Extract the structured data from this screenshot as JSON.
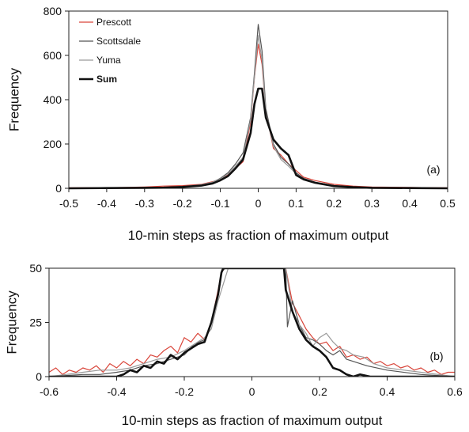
{
  "chart_data": [
    {
      "type": "line",
      "panel_label": "(a)",
      "xlabel": "10-min steps as fraction of maximum output",
      "ylabel": "Frequency",
      "xlim": [
        -0.5,
        0.5
      ],
      "ylim": [
        0,
        800
      ],
      "xticks": [
        "-0.5",
        "-0.4",
        "-0.3",
        "-0.2",
        "-0.1",
        "0",
        "0.1",
        "0.2",
        "0.3",
        "0.4",
        "0.5"
      ],
      "yticks": [
        "0",
        "200",
        "400",
        "600",
        "800"
      ],
      "legend_position": "top-left",
      "series": [
        {
          "name": "Prescott",
          "color": "#d9453a",
          "width": 1.2,
          "x": [
            -0.5,
            -0.45,
            -0.4,
            -0.35,
            -0.3,
            -0.25,
            -0.2,
            -0.15,
            -0.12,
            -0.1,
            -0.08,
            -0.06,
            -0.04,
            -0.02,
            -0.01,
            0,
            0.01,
            0.02,
            0.04,
            0.06,
            0.08,
            0.1,
            0.12,
            0.15,
            0.2,
            0.25,
            0.3,
            0.35,
            0.4,
            0.45,
            0.5
          ],
          "y": [
            2,
            3,
            2,
            4,
            6,
            10,
            12,
            18,
            30,
            40,
            60,
            90,
            120,
            300,
            500,
            650,
            560,
            350,
            180,
            150,
            110,
            80,
            50,
            35,
            18,
            10,
            6,
            5,
            4,
            3,
            2
          ]
        },
        {
          "name": "Scottsdale",
          "color": "#555555",
          "width": 1.2,
          "x": [
            -0.5,
            -0.4,
            -0.3,
            -0.25,
            -0.2,
            -0.15,
            -0.12,
            -0.1,
            -0.08,
            -0.06,
            -0.04,
            -0.02,
            -0.01,
            0,
            0.01,
            0.02,
            0.04,
            0.06,
            0.08,
            0.1,
            0.12,
            0.15,
            0.2,
            0.25,
            0.3,
            0.4,
            0.5
          ],
          "y": [
            0,
            1,
            2,
            4,
            8,
            15,
            28,
            45,
            70,
            110,
            160,
            320,
            520,
            740,
            620,
            360,
            200,
            140,
            110,
            70,
            45,
            28,
            12,
            6,
            3,
            1,
            0
          ]
        },
        {
          "name": "Yuma",
          "color": "#9a9a9a",
          "width": 1.2,
          "x": [
            -0.5,
            -0.4,
            -0.3,
            -0.25,
            -0.2,
            -0.15,
            -0.12,
            -0.1,
            -0.08,
            -0.06,
            -0.04,
            -0.02,
            -0.01,
            0,
            0.01,
            0.02,
            0.04,
            0.06,
            0.08,
            0.1,
            0.12,
            0.15,
            0.2,
            0.25,
            0.3,
            0.4,
            0.5
          ],
          "y": [
            0,
            1,
            2,
            4,
            8,
            16,
            28,
            42,
            65,
            100,
            140,
            310,
            500,
            690,
            580,
            340,
            190,
            130,
            100,
            65,
            40,
            25,
            12,
            6,
            3,
            1,
            0
          ]
        },
        {
          "name": "Sum",
          "color": "#111111",
          "width": 2.6,
          "x": [
            -0.5,
            -0.4,
            -0.3,
            -0.25,
            -0.2,
            -0.15,
            -0.12,
            -0.1,
            -0.08,
            -0.06,
            -0.04,
            -0.02,
            -0.01,
            0,
            0.01,
            0.02,
            0.04,
            0.06,
            0.08,
            0.1,
            0.12,
            0.15,
            0.2,
            0.25,
            0.3,
            0.4,
            0.5
          ],
          "y": [
            0,
            1,
            2,
            3,
            6,
            12,
            22,
            36,
            55,
            90,
            130,
            250,
            380,
            450,
            450,
            320,
            220,
            180,
            150,
            60,
            40,
            25,
            10,
            5,
            2,
            1,
            0
          ]
        }
      ]
    },
    {
      "type": "line",
      "panel_label": "(b)",
      "xlabel": "10-min steps as fraction of maximum output",
      "ylabel": "Frequency",
      "xlim": [
        -0.6,
        0.6
      ],
      "ylim": [
        0,
        50
      ],
      "xticks": [
        "-0.6",
        "-0.4",
        "-0.2",
        "0",
        "0.2",
        "0.4",
        "0.6"
      ],
      "yticks": [
        "0",
        "25",
        "50"
      ],
      "series": [
        {
          "name": "Prescott",
          "color": "#d9453a",
          "width": 1.2,
          "x": [
            -0.6,
            -0.58,
            -0.56,
            -0.54,
            -0.52,
            -0.5,
            -0.48,
            -0.46,
            -0.44,
            -0.42,
            -0.4,
            -0.38,
            -0.36,
            -0.34,
            -0.32,
            -0.3,
            -0.28,
            -0.26,
            -0.24,
            -0.22,
            -0.2,
            -0.18,
            -0.16,
            -0.14,
            -0.12,
            -0.1,
            -0.09,
            -0.08,
            0.1,
            0.11,
            0.12,
            0.14,
            0.16,
            0.18,
            0.2,
            0.22,
            0.24,
            0.26,
            0.28,
            0.3,
            0.32,
            0.34,
            0.36,
            0.38,
            0.4,
            0.42,
            0.44,
            0.46,
            0.48,
            0.5,
            0.52,
            0.54,
            0.56,
            0.58,
            0.6
          ],
          "y": [
            2,
            4,
            1,
            3,
            2,
            4,
            3,
            5,
            2,
            6,
            4,
            7,
            5,
            8,
            6,
            10,
            9,
            12,
            14,
            11,
            18,
            16,
            20,
            17,
            25,
            40,
            48,
            50,
            50,
            42,
            34,
            28,
            22,
            18,
            15,
            16,
            12,
            14,
            9,
            10,
            8,
            9,
            6,
            7,
            5,
            6,
            4,
            5,
            3,
            4,
            2,
            3,
            1,
            2,
            2
          ]
        },
        {
          "name": "Scottsdale",
          "color": "#555555",
          "width": 1.2,
          "x": [
            -0.6,
            -0.5,
            -0.45,
            -0.4,
            -0.36,
            -0.32,
            -0.28,
            -0.24,
            -0.2,
            -0.17,
            -0.14,
            -0.12,
            -0.1,
            -0.09,
            -0.08,
            0.1,
            0.105,
            0.12,
            0.14,
            0.16,
            0.18,
            0.2,
            0.22,
            0.24,
            0.26,
            0.28,
            0.3,
            0.34,
            0.4,
            0.5,
            0.6
          ],
          "y": [
            0,
            1,
            1,
            2,
            3,
            5,
            6,
            8,
            10,
            15,
            17,
            25,
            38,
            48,
            50,
            50,
            23,
            35,
            24,
            18,
            17,
            15,
            12,
            10,
            12,
            8,
            7,
            5,
            3,
            1,
            0
          ]
        },
        {
          "name": "Yuma",
          "color": "#9a9a9a",
          "width": 1.2,
          "x": [
            -0.6,
            -0.55,
            -0.5,
            -0.45,
            -0.4,
            -0.36,
            -0.32,
            -0.28,
            -0.24,
            -0.2,
            -0.17,
            -0.14,
            -0.12,
            -0.1,
            -0.08,
            -0.07,
            0.1,
            0.11,
            0.12,
            0.14,
            0.16,
            0.18,
            0.2,
            0.22,
            0.24,
            0.26,
            0.28,
            0.3,
            0.33,
            0.36,
            0.4,
            0.45,
            0.5,
            0.6
          ],
          "y": [
            0,
            1,
            2,
            3,
            3,
            4,
            6,
            8,
            9,
            12,
            15,
            18,
            22,
            35,
            45,
            50,
            50,
            40,
            30,
            24,
            20,
            14,
            18,
            20,
            16,
            13,
            12,
            10,
            9,
            6,
            4,
            3,
            2,
            0
          ]
        },
        {
          "name": "Sum",
          "color": "#111111",
          "width": 2.6,
          "x": [
            -0.6,
            -0.4,
            -0.38,
            -0.36,
            -0.34,
            -0.32,
            -0.3,
            -0.28,
            -0.26,
            -0.24,
            -0.22,
            -0.2,
            -0.18,
            -0.16,
            -0.14,
            -0.12,
            -0.1,
            -0.09,
            -0.085,
            0.095,
            0.1,
            0.12,
            0.14,
            0.16,
            0.18,
            0.2,
            0.22,
            0.24,
            0.26,
            0.28,
            0.3,
            0.32,
            0.35,
            0.4,
            0.6
          ],
          "y": [
            0,
            0,
            1,
            3,
            2,
            5,
            4,
            7,
            6,
            10,
            8,
            11,
            13,
            15,
            16,
            25,
            38,
            48,
            50,
            50,
            40,
            30,
            22,
            17,
            14,
            12,
            9,
            4,
            3,
            1,
            0,
            1,
            0,
            0,
            0
          ]
        }
      ]
    }
  ],
  "legend": [
    "Prescott",
    "Scottsdale",
    "Yuma",
    "Sum"
  ]
}
